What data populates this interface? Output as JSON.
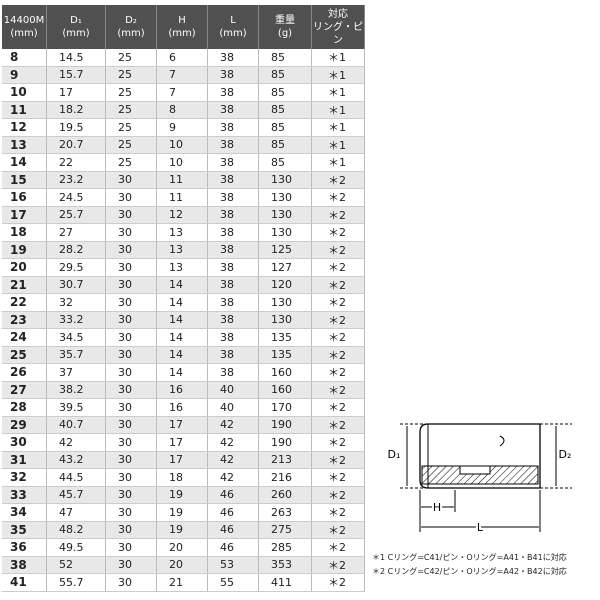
{
  "table": {
    "header": [
      [
        "14400M",
        "(mm)"
      ],
      [
        "D₁",
        "(mm)"
      ],
      [
        "D₂",
        "(mm)"
      ],
      [
        "H",
        "(mm)"
      ],
      [
        "L",
        "(mm)"
      ],
      [
        "重量",
        "(g)"
      ],
      [
        "対応",
        "リング・ピン"
      ]
    ],
    "rows": [
      [
        8,
        14.5,
        25,
        6,
        38,
        85,
        "＊1"
      ],
      [
        9,
        15.7,
        25,
        7,
        38,
        85,
        "＊1"
      ],
      [
        10,
        17,
        25,
        7,
        38,
        85,
        "＊1"
      ],
      [
        11,
        18.2,
        25,
        8,
        38,
        85,
        "＊1"
      ],
      [
        12,
        19.5,
        25,
        9,
        38,
        85,
        "＊1"
      ],
      [
        13,
        20.7,
        25,
        10,
        38,
        85,
        "＊1"
      ],
      [
        14,
        22,
        25,
        10,
        38,
        85,
        "＊1"
      ],
      [
        15,
        23.2,
        30,
        11,
        38,
        130,
        "＊2"
      ],
      [
        16,
        24.5,
        30,
        11,
        38,
        130,
        "＊2"
      ],
      [
        17,
        25.7,
        30,
        12,
        38,
        130,
        "＊2"
      ],
      [
        18,
        27,
        30,
        13,
        38,
        130,
        "＊2"
      ],
      [
        19,
        28.2,
        30,
        13,
        38,
        125,
        "＊2"
      ],
      [
        20,
        29.5,
        30,
        13,
        38,
        127,
        "＊2"
      ],
      [
        21,
        30.7,
        30,
        14,
        38,
        120,
        "＊2"
      ],
      [
        22,
        32,
        30,
        14,
        38,
        130,
        "＊2"
      ],
      [
        23,
        33.2,
        30,
        14,
        38,
        130,
        "＊2"
      ],
      [
        24,
        34.5,
        30,
        14,
        38,
        135,
        "＊2"
      ],
      [
        25,
        35.7,
        30,
        14,
        38,
        135,
        "＊2"
      ],
      [
        26,
        37,
        30,
        14,
        38,
        160,
        "＊2"
      ],
      [
        27,
        38.2,
        30,
        16,
        40,
        160,
        "＊2"
      ],
      [
        28,
        39.5,
        30,
        16,
        40,
        170,
        "＊2"
      ],
      [
        29,
        40.7,
        30,
        17,
        42,
        190,
        "＊2"
      ],
      [
        30,
        42,
        30,
        17,
        42,
        190,
        "＊2"
      ],
      [
        31,
        43.2,
        30,
        17,
        42,
        213,
        "＊2"
      ],
      [
        32,
        44.5,
        30,
        18,
        42,
        216,
        "＊2"
      ],
      [
        33,
        45.7,
        30,
        19,
        46,
        260,
        "＊2"
      ],
      [
        34,
        47,
        30,
        19,
        46,
        263,
        "＊2"
      ],
      [
        35,
        48.2,
        30,
        19,
        46,
        275,
        "＊2"
      ],
      [
        36,
        49.5,
        30,
        20,
        46,
        285,
        "＊2"
      ],
      [
        38,
        52,
        30,
        20,
        53,
        353,
        "＊2"
      ],
      [
        41,
        55.7,
        30,
        21,
        55,
        411,
        "＊2"
      ]
    ]
  },
  "diagram": {
    "labels": {
      "d1": "D₁",
      "d2": "D₂",
      "h": "H",
      "l": "L"
    }
  },
  "notes": [
    "＊1 Cリング=C41/ピン・Oリング=A41・B41に対応",
    "＊2 Cリング=C42/ピン・Oリング=A42・B42に対応"
  ]
}
